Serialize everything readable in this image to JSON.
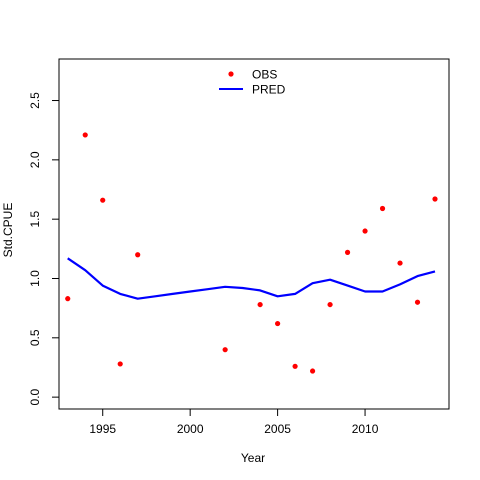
{
  "chart_data": {
    "type": "line",
    "title": "",
    "xlabel": "Year",
    "ylabel": "Std.CPUE",
    "xlim": [
      1992.5,
      2014.8
    ],
    "ylim": [
      -0.1,
      2.85
    ],
    "x_ticks": [
      1995,
      2000,
      2005,
      2010
    ],
    "y_ticks": [
      0.0,
      0.5,
      1.0,
      1.5,
      2.0,
      2.5
    ],
    "x_tick_labels": [
      "1995",
      "2000",
      "2005",
      "2010"
    ],
    "y_tick_labels": [
      "0.0",
      "0.5",
      "1.0",
      "1.5",
      "2.0",
      "2.5"
    ],
    "legend_position": "top-center",
    "series": [
      {
        "name": "OBS",
        "kind": "points",
        "color": "#ff0000",
        "x": [
          1993,
          1994,
          1995,
          1996,
          1997,
          2002,
          2004,
          2005,
          2006,
          2007,
          2008,
          2009,
          2010,
          2011,
          2012,
          2013,
          2014
        ],
        "values": [
          0.83,
          2.21,
          1.66,
          0.28,
          1.2,
          0.4,
          0.78,
          0.62,
          0.26,
          0.22,
          0.78,
          1.22,
          1.4,
          1.59,
          1.13,
          0.8,
          1.67
        ]
      },
      {
        "name": "PRED",
        "kind": "line",
        "color": "#0000ff",
        "x": [
          1993,
          1994,
          1995,
          1996,
          1997,
          1998,
          1999,
          2000,
          2001,
          2002,
          2003,
          2004,
          2005,
          2006,
          2007,
          2008,
          2009,
          2010,
          2011,
          2012,
          2013,
          2014
        ],
        "values": [
          1.17,
          1.07,
          0.94,
          0.87,
          0.83,
          0.85,
          0.87,
          0.89,
          0.91,
          0.93,
          0.92,
          0.9,
          0.85,
          0.87,
          0.96,
          0.99,
          0.94,
          0.89,
          0.89,
          0.95,
          1.02,
          1.06
        ]
      }
    ]
  }
}
